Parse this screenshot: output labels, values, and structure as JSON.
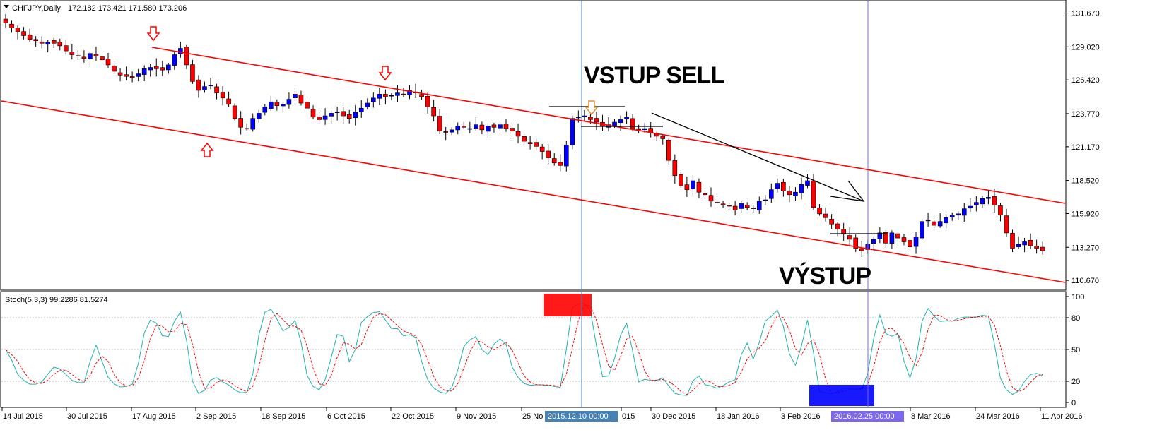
{
  "header": {
    "symbol": "CHFJPY,Daily",
    "ohlc": "172.182 173.421 171.580 173.206"
  },
  "indicator": {
    "label": "Stoch(5,3,3) 99.2286 81.5274",
    "levels": [
      100,
      80,
      50,
      20,
      0
    ],
    "main_color": "#20b2aa",
    "signal_color": "#ff0000"
  },
  "annotations": {
    "entry": "VSTUP SELL",
    "exit": "VÝSTUP"
  },
  "vlines": [
    {
      "label": "2015.12.10 00:00",
      "color": "#4682b4"
    },
    {
      "label": "2016.02.25 00:00",
      "color": "#7b68ee"
    }
  ],
  "chart_data": {
    "type": "candlestick",
    "price_axis_ticks": [
      131.67,
      129.02,
      126.42,
      123.77,
      121.17,
      118.52,
      115.92,
      113.27,
      110.67
    ],
    "ylim": [
      109.9,
      132.7
    ],
    "x_tick_labels": [
      "14 Jul 2015",
      "30 Jul 2015",
      "17 Aug 2015",
      "2 Sep 2015",
      "18 Sep 2015",
      "6 Oct 2015",
      "22 Oct 2015",
      "9 Nov 2015",
      "25 No",
      "015",
      "30 Dec 2015",
      "18 Jan 2016",
      "3 Feb 2016",
      "8 Mar 2016",
      "24 Mar 2016",
      "11 Apr 2016"
    ],
    "colors": {
      "bull": "#0000ff",
      "bear": "#ff0000",
      "channel": "#ff0000",
      "trend": "#000000"
    },
    "close_values": [
      130.9,
      130.5,
      130.2,
      129.9,
      129.6,
      129.5,
      129.3,
      129.4,
      129.3,
      129.1,
      128.7,
      128.4,
      128.3,
      128.1,
      128.5,
      128.3,
      128.0,
      127.6,
      127.1,
      126.8,
      126.7,
      126.6,
      126.9,
      127.3,
      127.4,
      127.3,
      127.2,
      127.6,
      128.4,
      128.9,
      127.6,
      126.3,
      125.6,
      125.9,
      126.0,
      125.4,
      125.0,
      124.5,
      123.4,
      122.7,
      122.6,
      123.4,
      123.8,
      124.3,
      124.7,
      124.4,
      124.5,
      124.9,
      125.3,
      124.6,
      124.2,
      123.5,
      123.3,
      123.6,
      123.8,
      123.9,
      123.6,
      123.4,
      123.9,
      124.2,
      124.6,
      125.0,
      125.3,
      125.1,
      125.2,
      125.4,
      125.3,
      125.6,
      125.4,
      125.1,
      124.3,
      123.6,
      122.4,
      122.3,
      122.5,
      122.8,
      122.7,
      122.6,
      122.9,
      122.5,
      122.8,
      122.7,
      122.9,
      122.6,
      122.4,
      122.0,
      121.6,
      121.4,
      121.2,
      120.8,
      120.3,
      119.9,
      119.7,
      121.3,
      123.4,
      123.5,
      123.6,
      123.3,
      123.1,
      122.8,
      122.9,
      123.1,
      123.3,
      123.5,
      122.6,
      122.5,
      122.6,
      122.3,
      122.0,
      121.8,
      120.1,
      118.9,
      118.1,
      117.8,
      118.5,
      117.6,
      117.4,
      116.9,
      116.8,
      116.6,
      116.5,
      116.2,
      116.7,
      116.4,
      116.3,
      116.9,
      117.0,
      117.8,
      118.3,
      117.7,
      117.4,
      117.6,
      118.2,
      118.5,
      116.4,
      115.9,
      115.6,
      115.1,
      114.7,
      114.3,
      113.9,
      113.2,
      113.0,
      113.5,
      113.9,
      114.4,
      113.6,
      114.4,
      114.0,
      113.7,
      113.3,
      114.1,
      115.3,
      115.4,
      115.0,
      115.3,
      115.6,
      115.8,
      115.9,
      116.3,
      116.5,
      116.8,
      117.1,
      117.2,
      116.6,
      115.8,
      114.4,
      113.2,
      113.5,
      113.7,
      113.4,
      113.2,
      113.0
    ]
  }
}
